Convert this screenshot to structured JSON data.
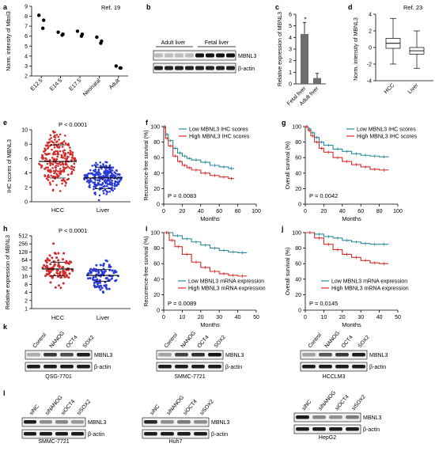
{
  "colors": {
    "teal": "#2a8a9b",
    "red": "#d42b2b",
    "blue": "#2b3bd4",
    "grey": "#6e6e6e",
    "lightgrey": "#c6c6c6"
  },
  "panels": {
    "a": {
      "letter": "a",
      "ref": "Ref. 19",
      "ylabel": "Norm. intensity of Mbnl3",
      "yticks": [
        2,
        3,
        4,
        5,
        6,
        7,
        8,
        9
      ],
      "categories": [
        "E12.5",
        "E14.5",
        "E17.5",
        "Neonatal",
        "Adult"
      ],
      "points": [
        [
          8.1,
          7.6,
          6.8
        ],
        [
          6.4,
          6.2,
          6.1
        ],
        [
          6.5,
          6.2,
          6.0
        ],
        [
          5.9,
          5.5,
          5.3
        ],
        [
          3.0,
          2.8,
          2.8
        ]
      ]
    },
    "b": {
      "letter": "b",
      "groups": [
        "Adult liver",
        "Fetal liver"
      ],
      "bands": [
        "MBNL3",
        "β-actin"
      ]
    },
    "c": {
      "letter": "c",
      "ylabel": "Relative expression of MBNL3",
      "asterisk": "*",
      "yticks": [
        0,
        1,
        2,
        3,
        4,
        5,
        6
      ],
      "categories": [
        "Fetal liver",
        "Adult liver"
      ],
      "values": [
        4.3,
        0.5
      ],
      "errors": [
        1.0,
        0.4
      ]
    },
    "d": {
      "letter": "d",
      "ref": "Ref. 23",
      "ylabel": "Norm. intensity of MBNL3",
      "yticks": [
        -4,
        -2,
        0,
        2,
        4
      ],
      "categories": [
        "HCC",
        "Liver"
      ],
      "boxes": [
        {
          "min": -2.0,
          "q1": -0.1,
          "median": 0.5,
          "q3": 1.1,
          "max": 3.5
        },
        {
          "min": -2.5,
          "q1": -0.8,
          "median": -0.4,
          "q3": 0.0,
          "max": 2.0
        }
      ]
    },
    "e": {
      "letter": "e",
      "pvalue": "P < 0.0001",
      "ylabel": "IHC scores of MBNL3",
      "yticks": [
        0,
        2,
        4,
        6,
        8,
        10
      ],
      "categories": [
        "HCC",
        "Liver"
      ],
      "means": [
        5.6,
        3.3
      ],
      "sd": [
        2.3,
        1.5
      ]
    },
    "f": {
      "letter": "f",
      "ylabel": "Recurrence-free survival (%)",
      "xlabel": "Months",
      "xticks": [
        0,
        20,
        40,
        60,
        80,
        100
      ],
      "yticks": [
        0,
        20,
        40,
        60,
        80,
        100
      ],
      "legend": [
        "Low MBNL3 IHC scores",
        "High MBNL3 IHC scores"
      ],
      "pvalue": "P = 0.0083",
      "series": [
        {
          "name": "Low MBNL3 IHC scores",
          "points": [
            [
              0,
              100
            ],
            [
              2,
              90
            ],
            [
              5,
              82
            ],
            [
              10,
              72
            ],
            [
              15,
              66
            ],
            [
              20,
              62
            ],
            [
              25,
              59
            ],
            [
              30,
              57
            ],
            [
              40,
              54
            ],
            [
              50,
              50
            ],
            [
              60,
              48
            ],
            [
              70,
              46
            ],
            [
              76,
              46
            ]
          ]
        },
        {
          "name": "High MBNL3 IHC scores",
          "points": [
            [
              0,
              100
            ],
            [
              2,
              85
            ],
            [
              5,
              75
            ],
            [
              10,
              62
            ],
            [
              15,
              55
            ],
            [
              20,
              50
            ],
            [
              25,
              47
            ],
            [
              30,
              44
            ],
            [
              40,
              40
            ],
            [
              50,
              37
            ],
            [
              60,
              35
            ],
            [
              70,
              33
            ],
            [
              76,
              33
            ]
          ]
        }
      ]
    },
    "g": {
      "letter": "g",
      "ylabel": "Overall survival (%)",
      "xlabel": "Months",
      "xticks": [
        0,
        20,
        40,
        60,
        80,
        100
      ],
      "yticks": [
        0,
        20,
        40,
        60,
        80,
        100
      ],
      "legend": [
        "Low MBNL3 IHC scores",
        "High MBNL3 IHC scores"
      ],
      "pvalue": "P = 0.0042",
      "series": [
        {
          "name": "Low MBNL3 IHC scores",
          "points": [
            [
              0,
              100
            ],
            [
              3,
              97
            ],
            [
              6,
              92
            ],
            [
              10,
              86
            ],
            [
              15,
              80
            ],
            [
              20,
              76
            ],
            [
              30,
              71
            ],
            [
              40,
              68
            ],
            [
              50,
              65
            ],
            [
              60,
              63
            ],
            [
              70,
              62
            ],
            [
              80,
              61
            ],
            [
              90,
              61
            ]
          ]
        },
        {
          "name": "High MBNL3 IHC scores",
          "points": [
            [
              0,
              100
            ],
            [
              3,
              95
            ],
            [
              6,
              88
            ],
            [
              10,
              80
            ],
            [
              15,
              72
            ],
            [
              20,
              67
            ],
            [
              30,
              60
            ],
            [
              40,
              55
            ],
            [
              50,
              51
            ],
            [
              60,
              48
            ],
            [
              70,
              45
            ],
            [
              80,
              44
            ],
            [
              90,
              44
            ]
          ]
        }
      ]
    },
    "h": {
      "letter": "h",
      "pvalue": "P < 0.0001",
      "ylabel": "Relative expression of MBNL3",
      "yticks": [
        "512",
        "256",
        "128",
        "64",
        "32",
        "16",
        "8",
        "4",
        "2",
        "1"
      ],
      "categories": [
        "HCC",
        "Liver"
      ],
      "means_log2": [
        4.9,
        4.1
      ],
      "sd_log2": [
        1.4,
        1.2
      ]
    },
    "i": {
      "letter": "i",
      "ylabel": "Recurrence-free survival (%)",
      "xlabel": "Months",
      "xticks": [
        0,
        10,
        20,
        30,
        40,
        50
      ],
      "yticks": [
        0,
        20,
        40,
        60,
        80,
        100
      ],
      "legend": [
        "Low MBNL3 mRNA expression",
        "High MBNL3 mRNA expression"
      ],
      "pvalue": "P = 0.0089",
      "series": [
        {
          "name": "Low MBNL3 mRNA expression",
          "points": [
            [
              0,
              100
            ],
            [
              5,
              96
            ],
            [
              10,
              92
            ],
            [
              15,
              88
            ],
            [
              20,
              84
            ],
            [
              25,
              80
            ],
            [
              30,
              77
            ],
            [
              35,
              75
            ],
            [
              40,
              74
            ],
            [
              45,
              74
            ]
          ]
        },
        {
          "name": "High MBNL3 mRNA expression",
          "points": [
            [
              0,
              100
            ],
            [
              3,
              90
            ],
            [
              6,
              82
            ],
            [
              10,
              72
            ],
            [
              15,
              62
            ],
            [
              20,
              55
            ],
            [
              25,
              50
            ],
            [
              30,
              47
            ],
            [
              35,
              45
            ],
            [
              40,
              44
            ],
            [
              45,
              44
            ]
          ]
        }
      ]
    },
    "j": {
      "letter": "j",
      "ylabel": "Overall survival (%)",
      "xlabel": "Months",
      "xticks": [
        0,
        10,
        20,
        30,
        40,
        50
      ],
      "yticks": [
        0,
        20,
        40,
        60,
        80,
        100
      ],
      "legend": [
        "Low MBNL3 mRNA expression",
        "High MBNL3 mRNA expression"
      ],
      "pvalue": "P = 0.0145",
      "series": [
        {
          "name": "Low MBNL3 mRNA expression",
          "points": [
            [
              0,
              100
            ],
            [
              5,
              98
            ],
            [
              10,
              95
            ],
            [
              15,
              93
            ],
            [
              20,
              90
            ],
            [
              25,
              88
            ],
            [
              30,
              86
            ],
            [
              35,
              85
            ],
            [
              40,
              85
            ],
            [
              45,
              85
            ]
          ]
        },
        {
          "name": "High MBNL3 mRNA expression",
          "points": [
            [
              0,
              100
            ],
            [
              5,
              93
            ],
            [
              10,
              85
            ],
            [
              15,
              78
            ],
            [
              20,
              72
            ],
            [
              25,
              68
            ],
            [
              30,
              64
            ],
            [
              35,
              61
            ],
            [
              40,
              60
            ],
            [
              45,
              60
            ]
          ]
        }
      ]
    },
    "k": {
      "letter": "k",
      "lanes": [
        "Control",
        "NANOG",
        "OCT4",
        "SOX2"
      ],
      "blots": [
        {
          "cell": "QSG-7701",
          "bands": [
            "MBNL3",
            "β-actin"
          ]
        },
        {
          "cell": "SMMC-7721",
          "bands": [
            "MBNL3",
            "β-actin"
          ]
        },
        {
          "cell": "HCCLM3",
          "bands": [
            "MBNL3",
            "β-actin"
          ]
        }
      ]
    },
    "l": {
      "letter": "l",
      "lanes": [
        "siNC",
        "siNANOG",
        "siOCT4",
        "siSOX2"
      ],
      "blots": [
        {
          "cell": "SMMC-7721",
          "bands": [
            "MBNL3",
            "β-actin"
          ]
        },
        {
          "cell": "Huh7",
          "bands": [
            "MBNL3",
            "β-actin"
          ]
        },
        {
          "cell": "HepG2",
          "bands": [
            "MBNL3",
            "β-actin"
          ]
        }
      ]
    }
  }
}
